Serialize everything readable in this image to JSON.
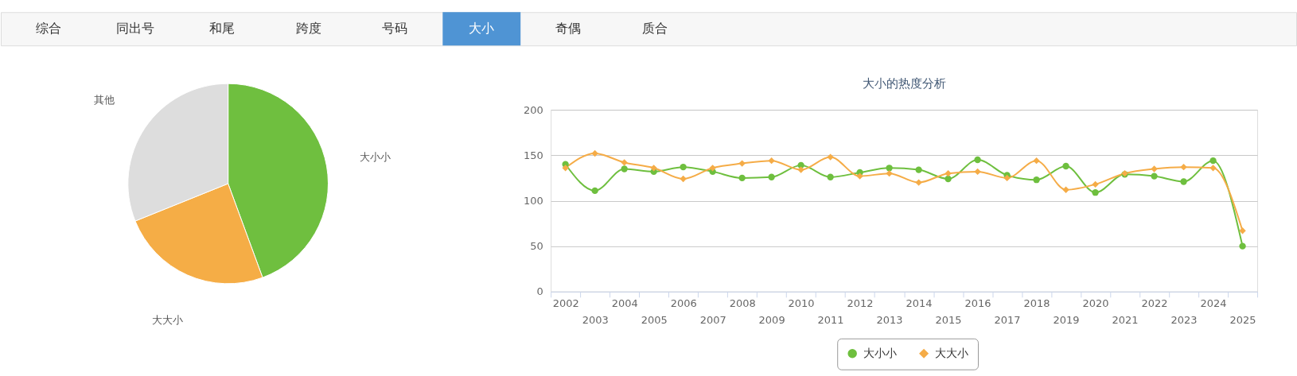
{
  "chart_data": [
    {
      "type": "other",
      "categories": [
        "综合",
        "同出号",
        "和尾",
        "跨度",
        "号码",
        "大小",
        "奇偶",
        "质合"
      ],
      "colors": [
        "#f7f7f7",
        "#f7f7f7",
        "#f7f7f7",
        "#f7f7f7",
        "#f7f7f7",
        "#4f94d4",
        "#f7f7f7",
        "#f7f7f7"
      ]
    },
    {
      "type": "pie",
      "categories": [
        "大小小",
        "大大小",
        "其他"
      ],
      "values": [
        44.4,
        24.5,
        31.1
      ],
      "colors": [
        "#6fbf3f",
        "#f5ad46",
        "#dddddd"
      ]
    },
    {
      "type": "line",
      "title": "大小的热度分析",
      "categories": [
        "2002",
        "2003",
        "2004",
        "2005",
        "2006",
        "2007",
        "2008",
        "2009",
        "2010",
        "2011",
        "2012",
        "2013",
        "2014",
        "2015",
        "2016",
        "2017",
        "2018",
        "2019",
        "2020",
        "2021",
        "2022",
        "2023",
        "2024",
        "2025"
      ],
      "series": [
        {
          "name": "大小小",
          "color": "#6ebf3e",
          "marker": "circle",
          "values": [
            140,
            111,
            135,
            132,
            137,
            132,
            125,
            126,
            139,
            126,
            131,
            136,
            134,
            124,
            145,
            128,
            123,
            138,
            109,
            129,
            127,
            121,
            144,
            50
          ]
        },
        {
          "name": "大大小",
          "color": "#f5ac47",
          "marker": "diamond",
          "values": [
            136,
            152,
            142,
            136,
            124,
            136,
            141,
            144,
            134,
            148,
            127,
            130,
            120,
            130,
            132,
            125,
            144,
            112,
            118,
            130,
            135,
            137,
            136,
            67
          ]
        }
      ],
      "ylim": [
        0,
        200
      ],
      "yticks": [
        0,
        50,
        100,
        150,
        200
      ],
      "grid": "y",
      "legend": "bottom",
      "line_style": "solid"
    }
  ]
}
